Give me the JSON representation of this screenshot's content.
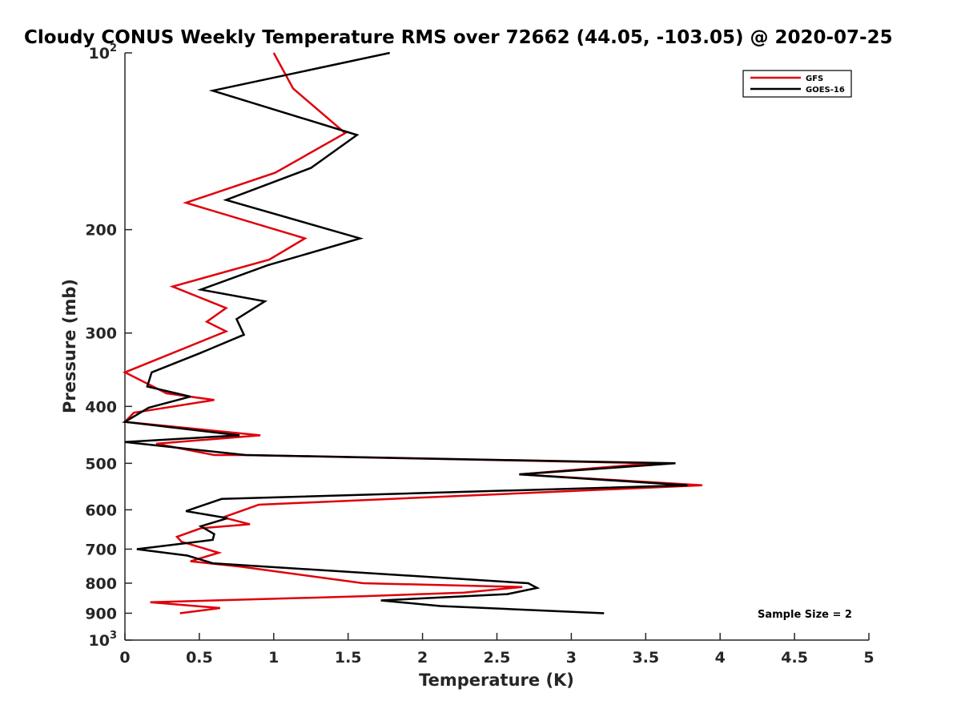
{
  "chart_data": {
    "type": "line",
    "title": "Cloudy CONUS Weekly Temperature RMS over 72662 (44.05, -103.05) @ 2020-07-25",
    "xlabel": "Temperature (K)",
    "ylabel": "Pressure (mb)",
    "xlim": [
      0,
      5
    ],
    "ylim": [
      100,
      1000
    ],
    "yscale": "log",
    "y_reversed": true,
    "x_ticks": [
      "0",
      "0.5",
      "1",
      "1.5",
      "2",
      "2.5",
      "3",
      "3.5",
      "4",
      "4.5",
      "5"
    ],
    "y_ticks": [
      {
        "value": 100,
        "base": "10",
        "exp": "2"
      },
      {
        "value": 200,
        "label": "200"
      },
      {
        "value": 300,
        "label": "300"
      },
      {
        "value": 400,
        "label": "400"
      },
      {
        "value": 500,
        "label": "500"
      },
      {
        "value": 600,
        "label": "600"
      },
      {
        "value": 700,
        "label": "700"
      },
      {
        "value": 800,
        "label": "800"
      },
      {
        "value": 900,
        "label": "900"
      },
      {
        "value": 1000,
        "base": "10",
        "exp": "3"
      }
    ],
    "grid": false,
    "legend_position": "top-right",
    "annotation": "Sample Size = 2",
    "series": [
      {
        "name": "GFS",
        "color": "#e0000b",
        "x": [
          1.0,
          1.13,
          1.48,
          1.01,
          0.41,
          1.21,
          0.97,
          0.32,
          0.68,
          0.55,
          0.68,
          0.0,
          0.28,
          0.6,
          0.06,
          0.0,
          0.91,
          0.21,
          0.6,
          0.8,
          3.55,
          2.65,
          3.88,
          0.9,
          0.66,
          0.84,
          0.51,
          0.35,
          0.38,
          0.63,
          0.44,
          0.78,
          1.6,
          2.67,
          2.28,
          1.6,
          0.17,
          0.64,
          0.37
        ],
        "y": [
          100,
          115,
          137,
          160,
          180,
          207,
          225,
          250,
          272,
          287,
          298,
          350,
          380,
          390,
          410,
          425,
          448,
          463,
          484,
          484,
          500,
          522,
          545,
          588,
          618,
          635,
          645,
          667,
          680,
          710,
          734,
          750,
          800,
          812,
          830,
          842,
          862,
          882,
          900
        ]
      },
      {
        "name": "GOES-16",
        "color": "#000000",
        "x": [
          1.78,
          0.59,
          1.56,
          1.25,
          0.68,
          1.58,
          0.96,
          0.51,
          0.94,
          0.75,
          0.8,
          0.5,
          0.18,
          0.15,
          0.44,
          0.16,
          0.0,
          0.77,
          0.0,
          0.81,
          3.7,
          2.65,
          3.78,
          0.65,
          0.41,
          0.69,
          0.51,
          0.6,
          0.59,
          0.08,
          0.42,
          0.59,
          2.71,
          2.77,
          2.57,
          1.72,
          2.12,
          3.22
        ],
        "y": [
          100,
          116,
          138,
          157,
          178,
          207,
          230,
          253,
          265,
          284,
          302,
          325,
          350,
          370,
          385,
          402,
          425,
          448,
          460,
          484,
          500,
          522,
          545,
          575,
          603,
          620,
          640,
          660,
          675,
          700,
          718,
          740,
          800,
          815,
          835,
          856,
          875,
          900
        ]
      }
    ]
  }
}
